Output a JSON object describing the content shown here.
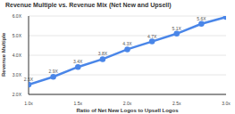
{
  "chart_data": {
    "type": "line",
    "title": "Revenue Multiple vs. Revenue Mix (Net New and Upsell)",
    "x_label": "Ratio of Net New Logos to Upsell Logos",
    "y_label": "Revenue Multiple",
    "x": [
      1,
      1.25,
      1.5,
      1.75,
      2,
      2.25,
      2.5,
      2.75,
      3
    ],
    "series": [
      {
        "name": "Revenue Multiple",
        "color": "#4a86e8",
        "values": [
          2.5,
          2.9,
          3.4,
          3.8,
          4.3,
          4.7,
          5.1,
          5.6,
          5.95
        ],
        "value_labels": [
          "2.5X",
          "2.9X",
          "3.4X",
          "3.8X",
          "4.3X",
          "4.7X",
          "5.1X",
          "5.6X",
          null
        ],
        "marker": "circle"
      }
    ],
    "xlim": [
      1,
      3
    ],
    "xticks": [
      {
        "value": 1,
        "label": "1.0x"
      },
      {
        "value": 1.5,
        "label": "1.5x"
      },
      {
        "value": 2,
        "label": "2.0x"
      },
      {
        "value": 2.5,
        "label": "2.5x"
      },
      {
        "value": 3,
        "label": "3.0x"
      }
    ],
    "ylim": [
      2,
      6
    ],
    "yticks": [
      {
        "value": 2,
        "label": "2.0X"
      },
      {
        "value": 3,
        "label": "3.0X"
      },
      {
        "value": 4,
        "label": "4.0X"
      },
      {
        "value": 5,
        "label": "5.0X"
      },
      {
        "value": 6,
        "label": "6.0X"
      }
    ],
    "grid": true,
    "data_labels": true
  }
}
